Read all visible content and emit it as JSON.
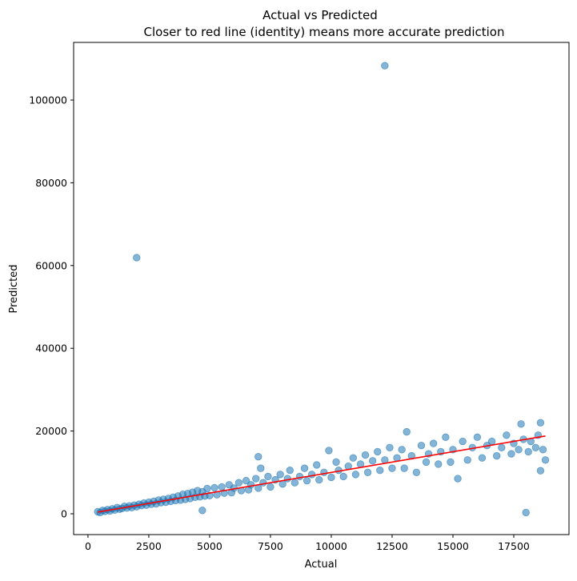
{
  "chart_data": {
    "type": "scatter",
    "title": "Actual vs Predicted",
    "subtitle": "Closer to red line (identity) means more accurate prediction",
    "xlabel": "Actual",
    "ylabel": "Predicted",
    "xlim": [
      -590,
      19770
    ],
    "ylim": [
      -5030,
      113930
    ],
    "xticks": [
      0,
      2500,
      5000,
      7500,
      10000,
      12500,
      15000,
      17500
    ],
    "xtick_labels": [
      "0",
      "2500",
      "5000",
      "7500",
      "10000",
      "12500",
      "15000",
      "17500"
    ],
    "yticks": [
      0,
      20000,
      40000,
      60000,
      80000,
      100000
    ],
    "ytick_labels": [
      "0",
      "20000",
      "40000",
      "60000",
      "80000",
      "100000"
    ],
    "grid": false,
    "point_color": "#1f77b4",
    "point_alpha": 0.55,
    "line_color": "#ff0000",
    "identity_line": {
      "x": [
        400,
        18800
      ],
      "y": [
        400,
        18800
      ]
    },
    "points": [
      [
        400,
        500
      ],
      [
        500,
        300
      ],
      [
        600,
        800
      ],
      [
        700,
        600
      ],
      [
        800,
        1000
      ],
      [
        900,
        700
      ],
      [
        1000,
        1200
      ],
      [
        1100,
        900
      ],
      [
        1200,
        1500
      ],
      [
        1300,
        1100
      ],
      [
        1400,
        1300
      ],
      [
        1500,
        1800
      ],
      [
        1600,
        1400
      ],
      [
        1700,
        1900
      ],
      [
        1800,
        1500
      ],
      [
        1900,
        2100
      ],
      [
        2000,
        1700
      ],
      [
        2100,
        2300
      ],
      [
        2200,
        2000
      ],
      [
        2300,
        2600
      ],
      [
        2400,
        2100
      ],
      [
        2500,
        2800
      ],
      [
        2600,
        2300
      ],
      [
        2700,
        3000
      ],
      [
        2800,
        2400
      ],
      [
        2900,
        3300
      ],
      [
        3000,
        2700
      ],
      [
        3100,
        3500
      ],
      [
        3200,
        2800
      ],
      [
        3300,
        3700
      ],
      [
        3400,
        3000
      ],
      [
        3500,
        4000
      ],
      [
        3600,
        3200
      ],
      [
        3700,
        4300
      ],
      [
        3800,
        3300
      ],
      [
        3900,
        4700
      ],
      [
        4000,
        3500
      ],
      [
        4100,
        4900
      ],
      [
        4200,
        3700
      ],
      [
        4300,
        5200
      ],
      [
        4400,
        4000
      ],
      [
        4500,
        5600
      ],
      [
        4600,
        4100
      ],
      [
        4700,
        5300
      ],
      [
        4800,
        4300
      ],
      [
        4900,
        6100
      ],
      [
        5000,
        4400
      ],
      [
        5200,
        6300
      ],
      [
        5300,
        4600
      ],
      [
        5500,
        6500
      ],
      [
        5600,
        5000
      ],
      [
        5800,
        7000
      ],
      [
        5900,
        5100
      ],
      [
        6000,
        6200
      ],
      [
        6200,
        7500
      ],
      [
        6300,
        5600
      ],
      [
        6500,
        8000
      ],
      [
        6600,
        5800
      ],
      [
        6700,
        7000
      ],
      [
        6900,
        8500
      ],
      [
        7000,
        6200
      ],
      [
        7100,
        11000
      ],
      [
        7200,
        7500
      ],
      [
        7400,
        9000
      ],
      [
        7500,
        6500
      ],
      [
        7700,
        8200
      ],
      [
        7900,
        9500
      ],
      [
        8000,
        7200
      ],
      [
        8200,
        8500
      ],
      [
        8300,
        10500
      ],
      [
        8500,
        7500
      ],
      [
        8700,
        9000
      ],
      [
        8900,
        11000
      ],
      [
        9000,
        8000
      ],
      [
        9200,
        9500
      ],
      [
        9400,
        11800
      ],
      [
        9500,
        8200
      ],
      [
        9700,
        10000
      ],
      [
        9900,
        15300
      ],
      [
        10000,
        8800
      ],
      [
        10200,
        12500
      ],
      [
        10300,
        10500
      ],
      [
        10500,
        9000
      ],
      [
        10700,
        11500
      ],
      [
        10900,
        13500
      ],
      [
        11000,
        9500
      ],
      [
        11200,
        12000
      ],
      [
        11400,
        14200
      ],
      [
        11500,
        10000
      ],
      [
        11700,
        12800
      ],
      [
        11900,
        15000
      ],
      [
        12000,
        10500
      ],
      [
        12200,
        13000
      ],
      [
        12400,
        16000
      ],
      [
        12500,
        11000
      ],
      [
        12700,
        13500
      ],
      [
        12900,
        15500
      ],
      [
        13000,
        11000
      ],
      [
        13100,
        19800
      ],
      [
        13300,
        14000
      ],
      [
        13500,
        10000
      ],
      [
        13700,
        16500
      ],
      [
        13900,
        12500
      ],
      [
        14000,
        14500
      ],
      [
        14200,
        17000
      ],
      [
        14400,
        12000
      ],
      [
        14500,
        15000
      ],
      [
        14700,
        18500
      ],
      [
        14900,
        12500
      ],
      [
        15000,
        15500
      ],
      [
        15200,
        8500
      ],
      [
        15400,
        17500
      ],
      [
        15600,
        13000
      ],
      [
        15800,
        16000
      ],
      [
        16000,
        18500
      ],
      [
        16200,
        13500
      ],
      [
        16400,
        16500
      ],
      [
        16600,
        17500
      ],
      [
        16800,
        14000
      ],
      [
        17000,
        16000
      ],
      [
        17200,
        19000
      ],
      [
        17400,
        14500
      ],
      [
        17500,
        17000
      ],
      [
        17700,
        15500
      ],
      [
        17800,
        21700
      ],
      [
        17900,
        18000
      ],
      [
        18000,
        300
      ],
      [
        18100,
        15000
      ],
      [
        18200,
        17500
      ],
      [
        18400,
        16000
      ],
      [
        18500,
        19000
      ],
      [
        18600,
        22000
      ],
      [
        18600,
        10400
      ],
      [
        18700,
        15500
      ],
      [
        18800,
        13000
      ],
      [
        12200,
        108300
      ],
      [
        2000,
        61900
      ],
      [
        4700,
        800
      ],
      [
        7000,
        13800
      ]
    ]
  }
}
